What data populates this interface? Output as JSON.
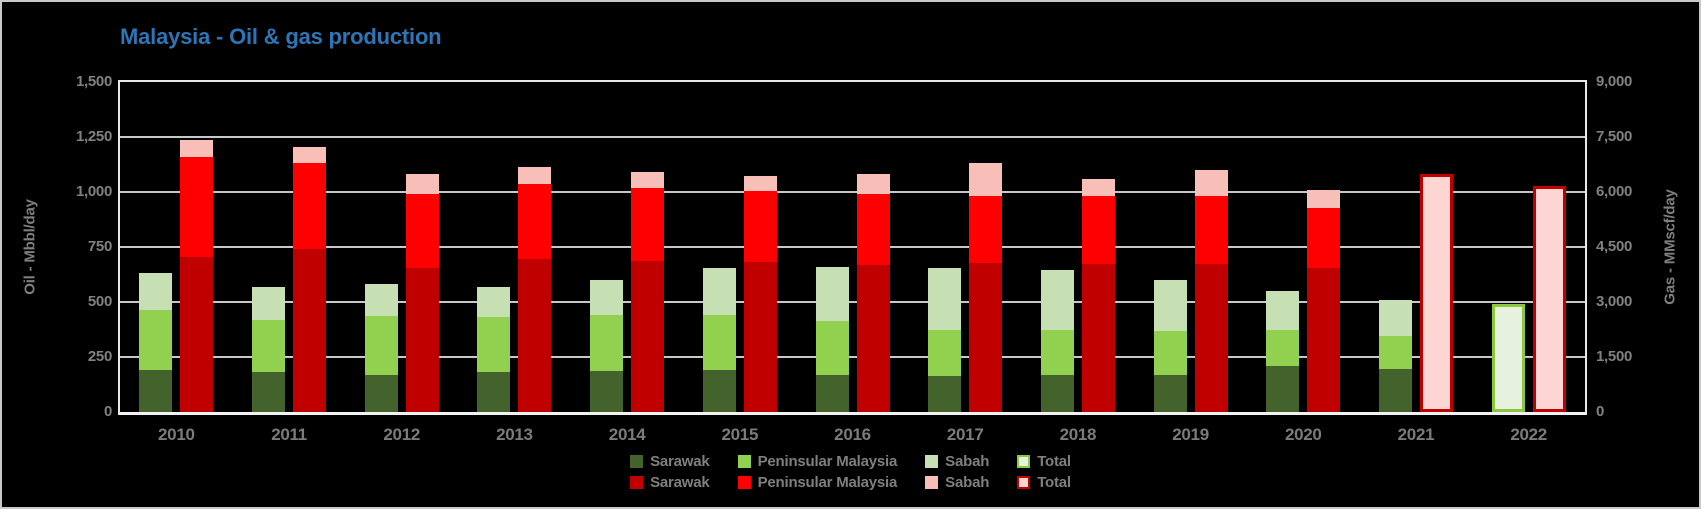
{
  "page": {
    "background": "#000000",
    "title_color": "#2e75b6",
    "text_color": "#7f7f7f",
    "gridline_color": "#c8c8c8"
  },
  "chart_data": {
    "type": "bar",
    "subtype": "stacked-columns-dual-axis",
    "title": "Malaysia - Oil & gas production",
    "grid": true,
    "legend_position": "bottom",
    "categories": [
      "2010",
      "2011",
      "2012",
      "2013",
      "2014",
      "2015",
      "2016",
      "2017",
      "2018",
      "2019",
      "2020",
      "2021",
      "2022"
    ],
    "left_axis": {
      "label": "Oil - Mbbl/day",
      "min": 0,
      "max": 1500,
      "step": 250,
      "ticks": [
        "0",
        "250",
        "500",
        "750",
        "1,000",
        "1,250",
        "1,500"
      ]
    },
    "right_axis": {
      "label": "Gas - MMscf/day",
      "min": 0,
      "max": 9000,
      "step": 1500,
      "ticks": [
        "0",
        "1,500",
        "3,000",
        "4,500",
        "6,000",
        "7,500",
        "9,000"
      ]
    },
    "oil": {
      "id": "oil",
      "axis": "left",
      "unit": "Mbbl/day",
      "segments": [
        {
          "name": "Sarawak",
          "color": "#44622c",
          "values": [
            190,
            180,
            170,
            180,
            185,
            190,
            170,
            165,
            170,
            170,
            210,
            195,
            null
          ]
        },
        {
          "name": "Peninsular Malaysia",
          "color": "#92d050",
          "values": [
            275,
            240,
            265,
            250,
            255,
            250,
            245,
            210,
            205,
            200,
            165,
            150,
            null
          ]
        },
        {
          "name": "Sabah",
          "color": "#c6e0b4",
          "values": [
            165,
            150,
            145,
            140,
            160,
            215,
            245,
            280,
            270,
            230,
            175,
            165,
            null
          ]
        }
      ],
      "total_outline": {
        "name": "Total",
        "fill": "#e6f1de",
        "border": "#8dc63f",
        "values": [
          null,
          null,
          null,
          null,
          null,
          null,
          null,
          null,
          null,
          null,
          null,
          null,
          490
        ]
      }
    },
    "gas": {
      "id": "gas",
      "axis": "right",
      "unit": "MMscf/day",
      "segments": [
        {
          "name": "Sarawak",
          "color": "#c00000",
          "values": [
            4230,
            4455,
            3915,
            4185,
            4110,
            4080,
            4000,
            4070,
            4050,
            4025,
            3915,
            null,
            null
          ]
        },
        {
          "name": "Peninsular Malaysia",
          "color": "#ff0000",
          "values": [
            2715,
            2340,
            2025,
            2045,
            2000,
            1950,
            1940,
            1830,
            1830,
            1870,
            1645,
            null,
            null
          ]
        },
        {
          "name": "Sabah",
          "color": "#f8bfb8",
          "values": [
            480,
            420,
            540,
            450,
            430,
            410,
            540,
            880,
            470,
            695,
            490,
            null,
            null
          ]
        }
      ],
      "total_outline": {
        "name": "Total",
        "fill": "#fdd6d4",
        "border": "#c00000",
        "values": [
          null,
          null,
          null,
          null,
          null,
          null,
          null,
          null,
          null,
          null,
          null,
          6480,
          6170
        ]
      }
    }
  },
  "legend": {
    "rows": [
      {
        "series": "oil",
        "items": [
          {
            "label": "Sarawak",
            "fill": "#44622c"
          },
          {
            "label": "Peninsular Malaysia",
            "fill": "#92d050"
          },
          {
            "label": "Sabah",
            "fill": "#c6e0b4"
          },
          {
            "label": "Total",
            "fill": "#e6f1de",
            "border": "#8dc63f"
          }
        ]
      },
      {
        "series": "gas",
        "items": [
          {
            "label": "Sarawak",
            "fill": "#c00000"
          },
          {
            "label": "Peninsular Malaysia",
            "fill": "#ff0000"
          },
          {
            "label": "Sabah",
            "fill": "#f8bfb8"
          },
          {
            "label": "Total",
            "fill": "#fdd6d4",
            "border": "#c00000"
          }
        ]
      }
    ]
  }
}
